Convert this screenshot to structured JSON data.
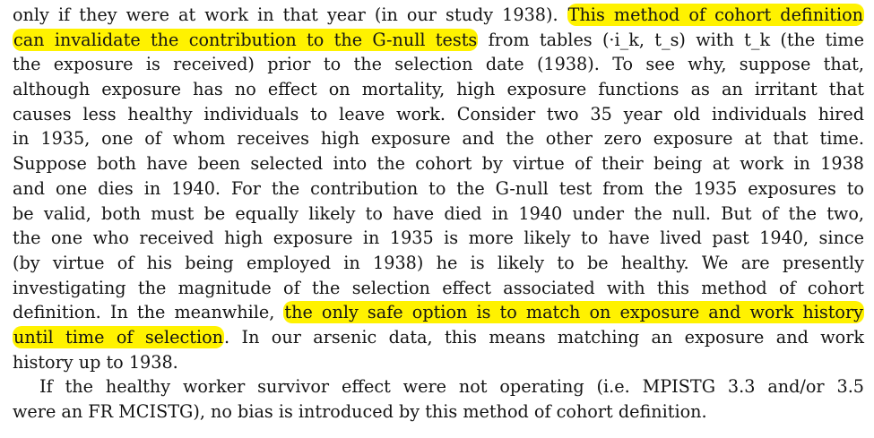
{
  "paragraph1": {
    "line1": {
      "before": "only if they were at work in that year (in our study 1938). ",
      "highlight": "This method of cohort definition"
    },
    "line2": {
      "highlight": "can invalidate the contribution to the G-null tests",
      "after": " from tables (·i_k, t_s) with t_k (the time"
    },
    "line3": "the exposure is received) prior to the selection date (1938). To see why, suppose that,",
    "line4": "although exposure has no effect on mortality, high exposure functions as an irritant that",
    "line5": "causes less healthy individuals to leave work. Consider two 35 year old individuals hired",
    "line6": "in 1935, one of whom receives high exposure and the other zero exposure at that time.",
    "line7": "Suppose both have been selected into the cohort by virtue of their being at work in 1938",
    "line8": "and one dies in 1940. For the contribution to the G-null test from the 1935 exposures to",
    "line9": "be valid, both must be equally likely to have died in 1940 under the null. But of the two,",
    "line10": "the one who received high exposure in 1935 is more likely to have lived past 1940, since",
    "line11": "(by virtue of his being employed in 1938) he is likely to be healthy. We are presently",
    "line12": "investigating the magnitude of the selection effect associated with this method of cohort",
    "line13": {
      "before": "definition. In the meanwhile, ",
      "highlight": "the only safe option is to match on exposure and work history"
    },
    "line14": {
      "highlight": "until time of selection",
      "after": ". In our arsenic data, this means matching an exposure and work"
    },
    "line15": "history up to 1938."
  },
  "paragraph2": {
    "line1": "If the healthy worker survivor effect were not operating (i.e. MPISTG 3.3 and/or 3.5",
    "line2": "were an FR MCISTG), no bias is introduced by this method of cohort definition."
  },
  "colors": {
    "highlight": "#fff200",
    "text": "#141414"
  }
}
